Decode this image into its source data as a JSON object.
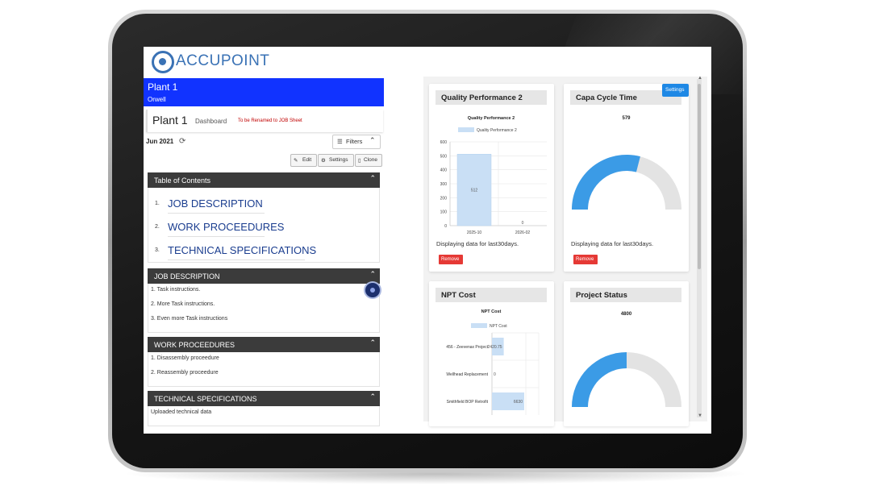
{
  "brand": {
    "logo_text": "ACCUPOINT"
  },
  "plant": {
    "name": "Plant 1",
    "location": "Orwell"
  },
  "title_card": {
    "title": "Plant 1",
    "subtitle": "Dashboard",
    "rename_note": "To be Renamed to  JOB Sheet"
  },
  "toolbar": {
    "date": "Jun 2021",
    "filters_label": "Filters",
    "edit_label": "Edit",
    "settings_label": "Settings",
    "clone_label": "Clone"
  },
  "toc": {
    "header": "Table of Contents",
    "items": [
      {
        "num": "1.",
        "label": "JOB DESCRIPTION"
      },
      {
        "num": "2.",
        "label": "WORK PROCEEDURES"
      },
      {
        "num": "3.",
        "label": "TECHNICAL SPECIFICATIONS"
      }
    ]
  },
  "job_description": {
    "header": "JOB DESCRIPTION",
    "items": [
      "1. Task instructions.",
      "2. More Task instructions.",
      "3. Even more Task instructions"
    ]
  },
  "work_proceedures": {
    "header": "WORK PROCEEDURES",
    "items": [
      "1. Disassembly proceedure",
      "2. Reassembly proceedure"
    ]
  },
  "technical_specifications": {
    "header": "TECHNICAL SPECIFICATIONS",
    "items": [
      "Uploaded technical data"
    ]
  },
  "dashboard": {
    "settings_label": "Settings",
    "remove_label": "Remove",
    "cards": {
      "quality": {
        "title": "Quality Performance 2",
        "note": "Displaying data for last30days."
      },
      "capa": {
        "title": "Capa Cycle Time",
        "value": "579",
        "note": "Displaying data for last30days."
      },
      "npt": {
        "title": "NPT Cost"
      },
      "project": {
        "title": "Project Status",
        "value": "4800"
      }
    }
  },
  "chart_data": [
    {
      "type": "bar",
      "title": "Quality Performance 2",
      "legend": "Quality Performance 2",
      "categories": [
        "2025-10",
        "2026-02"
      ],
      "values": [
        512,
        0
      ],
      "data_labels": [
        "512",
        "0"
      ],
      "ylim": [
        0,
        600
      ],
      "yticks": [
        "0",
        "100",
        "200",
        "300",
        "400",
        "500",
        "600"
      ],
      "color": "#c9dff5"
    },
    {
      "type": "gauge",
      "title": "579",
      "fraction": 0.58,
      "color": "#3b9be6",
      "track_color": "#e3e3e3"
    },
    {
      "type": "bar",
      "orientation": "horizontal",
      "title": "NPT Cost",
      "legend": "NPT Cost",
      "categories": [
        "456 - Zeevenax Project",
        "Wellhead Replacement",
        "Smithfield BOP Retrofit"
      ],
      "values": [
        2420.75,
        0,
        6630
      ],
      "data_labels": [
        "2420.75",
        "0",
        "6630"
      ],
      "color": "#c9dff5"
    },
    {
      "type": "gauge",
      "title": "4800",
      "fraction": 0.5,
      "color": "#3b9be6",
      "track_color": "#e3e3e3"
    }
  ]
}
